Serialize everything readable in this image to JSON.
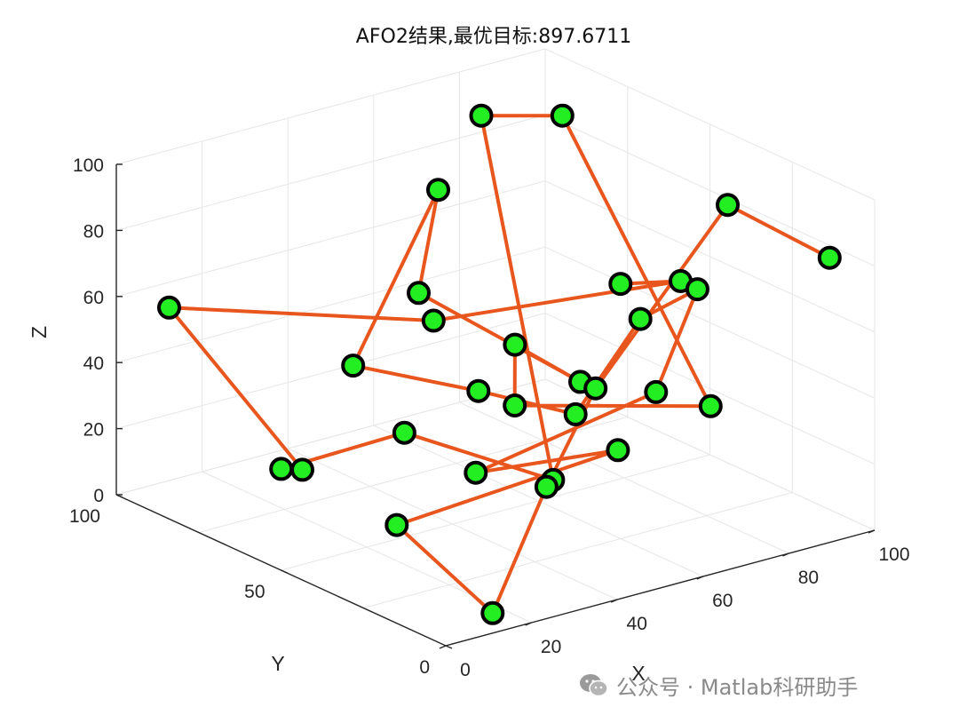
{
  "chart_data": {
    "type": "line3d",
    "title": "AFO2结果,最优目标:897.6711",
    "xlabel": "X",
    "ylabel": "Y",
    "zlabel": "Z",
    "xlim": [
      0,
      100
    ],
    "ylim": [
      0,
      100
    ],
    "zlim": [
      0,
      100
    ],
    "x_ticks": [
      0,
      20,
      40,
      60,
      80,
      100
    ],
    "y_ticks": [
      0,
      50,
      100
    ],
    "z_ticks": [
      0,
      20,
      40,
      60,
      80,
      100
    ],
    "grid": true,
    "line_color": "#e8561e",
    "marker_face": "#22ee22",
    "marker_edge": "#000000",
    "path": [
      [
        65.4,
        32.1,
        72.0
      ],
      [
        71.5,
        21.8,
        75.4
      ],
      [
        43.1,
        59.8,
        56.0
      ],
      [
        9.7,
        96.6,
        54.8
      ],
      [
        31.4,
        84.4,
        3.7
      ],
      [
        27.0,
        85.1,
        5.2
      ],
      [
        41.2,
        66.2,
        19.8
      ],
      [
        68.9,
        57.1,
        0.0
      ],
      [
        69.2,
        79.3,
        100.0
      ],
      [
        81.1,
        70.2,
        100.0
      ],
      [
        78.5,
        21.8,
        35.1
      ],
      [
        54.1,
        49.5,
        31.2
      ],
      [
        64.6,
        63.1,
        39.7
      ],
      [
        66.0,
        45.1,
        36.2
      ],
      [
        51.9,
        75.8,
        54.0
      ],
      [
        42.4,
        57.5,
        96.9
      ],
      [
        37.1,
        76.4,
        36.9
      ],
      [
        42.5,
        45.4,
        41.5
      ],
      [
        53.0,
        29.6,
        38.0
      ],
      [
        70.2,
        32.3,
        59.6
      ],
      [
        95.0,
        47.3,
        53.1
      ],
      [
        94.5,
        59.2,
        16.7
      ],
      [
        49.7,
        55.6,
        9.6
      ],
      [
        77.7,
        48.9,
        9.7
      ],
      [
        10.0,
        27.9,
        20.3
      ],
      [
        14.7,
        4.9,
        2.5
      ],
      [
        45.6,
        28.8,
        19.0
      ],
      [
        63.5,
        37.2,
        38.7
      ],
      [
        89.4,
        30.8,
        88.1
      ],
      [
        95.8,
        8.2,
        80.2
      ]
    ]
  },
  "watermark": {
    "text": "公众号 · Matlab科研助手",
    "icon": "wechat-icon"
  }
}
